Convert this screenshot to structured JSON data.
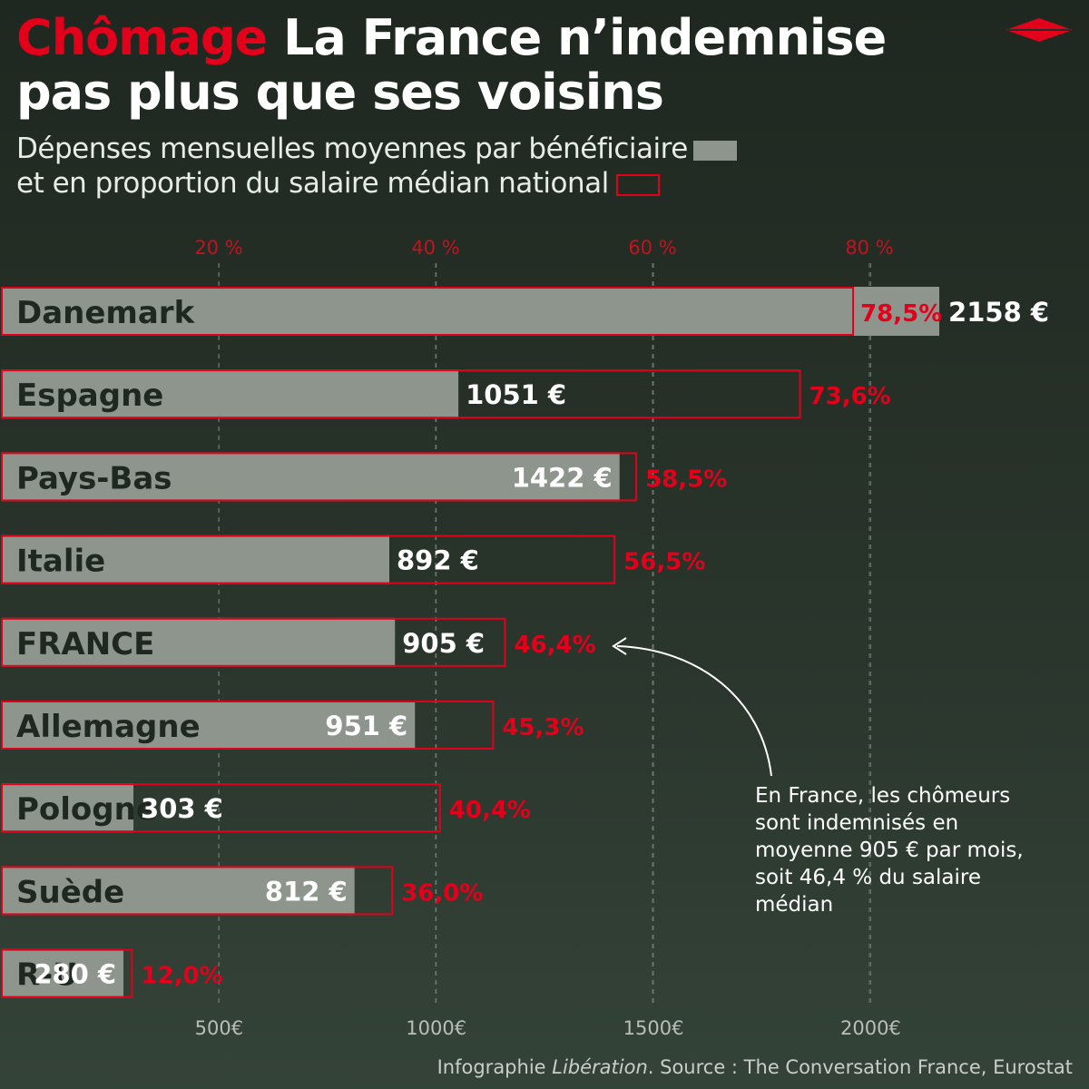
{
  "header": {
    "kicker": "Chômage",
    "title": "La France n’indemnise pas plus que ses voisins",
    "subtitle_line1": "Dépenses mensuelles moyennes par bénéficiaire",
    "subtitle_line2": "et en proportion du salaire médian national",
    "logo_icon": "liberation-logo-icon"
  },
  "colors": {
    "background": "#252f27",
    "bar_amount": "#8d958d",
    "bar_share_outline": "#e2001a",
    "accent_red": "#e2001a",
    "text": "#ffffff",
    "text_dark": "#1f2820"
  },
  "chart_data": {
    "type": "bar",
    "orientation": "horizontal",
    "categories": [
      "Danemark",
      "Espagne",
      "Pays-Bas",
      "Italie",
      "FRANCE",
      "Allemagne",
      "Pologne",
      "Suède",
      "R-U"
    ],
    "series": [
      {
        "name": "Dépenses mensuelles moyennes par bénéficiaire",
        "unit": "€",
        "values": [
          2158,
          1051,
          1422,
          892,
          905,
          951,
          303,
          812,
          280
        ],
        "labels": [
          "2158 €",
          "1051 €",
          "1422 €",
          "892 €",
          "905 €",
          "951 €",
          "303 €",
          "812 €",
          "280 €"
        ],
        "axis": "bottom",
        "ticks": [
          500,
          1000,
          1500,
          2000
        ],
        "tick_labels": [
          "500€",
          "1000€",
          "1500€",
          "2000€"
        ]
      },
      {
        "name": "En proportion du salaire médian national",
        "unit": "%",
        "values": [
          78.5,
          73.6,
          58.5,
          56.5,
          46.4,
          45.3,
          40.4,
          36.0,
          12.0
        ],
        "labels": [
          "78,5%",
          "73,6%",
          "58,5%",
          "56,5%",
          "46,4%",
          "45,3%",
          "40,4%",
          "36,0%",
          "12,0%"
        ],
        "axis": "top",
        "ticks": [
          20,
          40,
          60,
          80
        ],
        "tick_labels": [
          "20 %",
          "40 %",
          "60 %",
          "80 %"
        ]
      }
    ],
    "grid": "dashed vertical"
  },
  "annotation": "En France, les chômeurs sont indemnisés en moyenne 905 € par mois, soit 46,4 % du salaire médian",
  "footer": {
    "credit_prefix": "Infographie ",
    "credit_brand": "Libération",
    "credit_source": ". Source : The Conversation France, Eurostat"
  }
}
